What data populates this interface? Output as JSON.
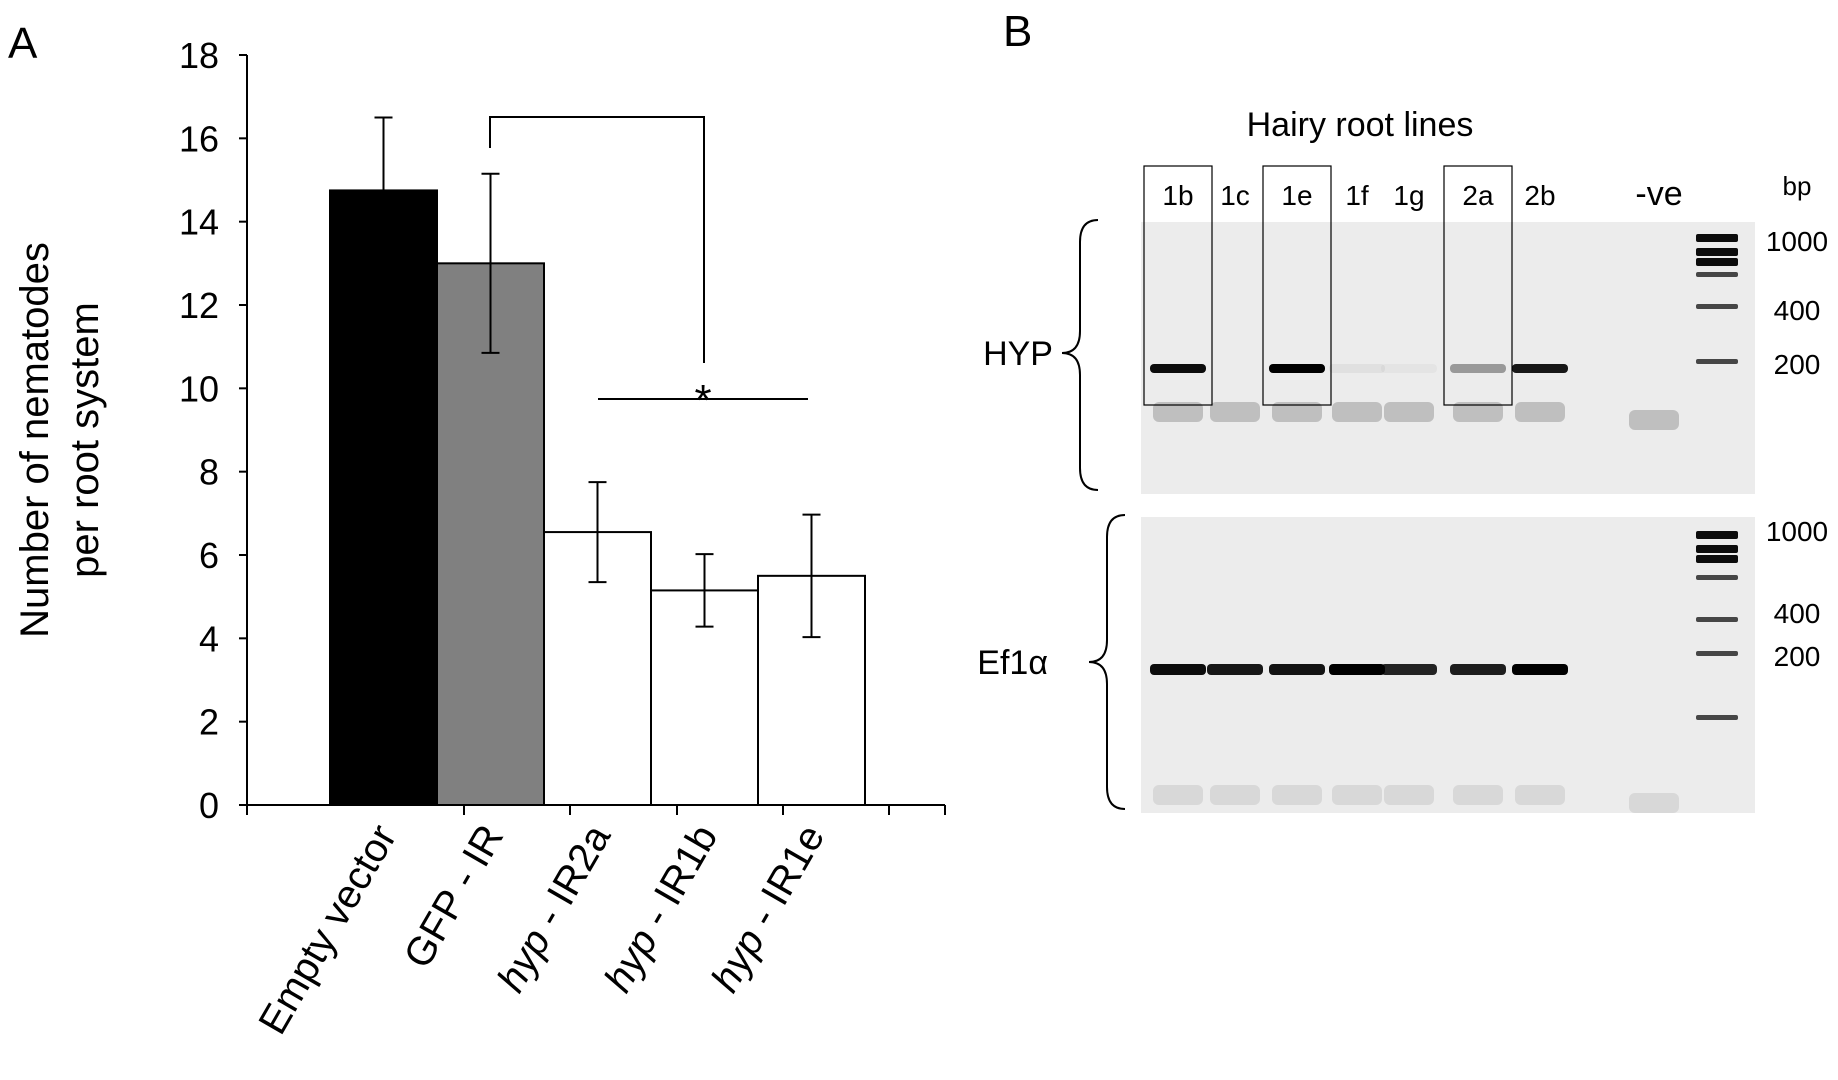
{
  "panel_a": {
    "letter": "A",
    "significance": "*"
  },
  "panel_b": {
    "letter": "B",
    "title": "Hairy root lines",
    "bp_label": "bp",
    "lanes": [
      "1b",
      "1c",
      "1e",
      "1f",
      "1g",
      "2a",
      "2b",
      "-ve"
    ],
    "boxed_lanes": [
      "1b",
      "1e",
      "2a"
    ],
    "gels": [
      {
        "label": "HYP",
        "ladder_labels": [
          "1000",
          "400",
          "200"
        ],
        "band_intensity": {
          "1b": 0.95,
          "1c": 0.0,
          "1e": 1.0,
          "1f": 0.05,
          "1g": 0.03,
          "2a": 0.35,
          "2b": 0.9,
          "-ve": 0.0
        },
        "primer_band": {
          "1b": 1,
          "1c": 1,
          "1e": 1,
          "1f": 1,
          "1g": 1,
          "2a": 1,
          "2b": 1,
          "-ve": 1
        }
      },
      {
        "label": "Ef1α",
        "ladder_labels": [
          "1000",
          "400",
          "200"
        ],
        "band_intensity": {
          "1b": 0.95,
          "1c": 0.9,
          "1e": 0.92,
          "1f": 1.0,
          "1g": 0.85,
          "2a": 0.88,
          "2b": 1.0,
          "-ve": 0.0
        },
        "primer_band": {
          "1b": 1,
          "1c": 1,
          "1e": 1,
          "1f": 1,
          "1g": 1,
          "2a": 1,
          "2b": 1,
          "-ve": 1
        }
      }
    ]
  },
  "chart_data": {
    "type": "bar",
    "ylabel_line1": "Number of nematodes",
    "ylabel_line2": "per root system",
    "ylim": [
      0,
      18
    ],
    "yticks": [
      0,
      2,
      4,
      6,
      8,
      10,
      12,
      14,
      16,
      18
    ],
    "categories": [
      {
        "prefix": "",
        "italic": "",
        "rest": "Empty vector"
      },
      {
        "prefix": "",
        "italic": "",
        "rest": "GFP - IR"
      },
      {
        "prefix": "",
        "italic": "hyp",
        "rest": " - IR2a"
      },
      {
        "prefix": "",
        "italic": "hyp",
        "rest": " - IR1b"
      },
      {
        "prefix": "",
        "italic": "hyp",
        "rest": " - IR1e"
      }
    ],
    "values": [
      14.75,
      13.0,
      6.55,
      5.15,
      5.5
    ],
    "errors": [
      1.75,
      2.15,
      1.2,
      0.87,
      1.47
    ],
    "colors": [
      "#000000",
      "#808080",
      "#ffffff",
      "#ffffff",
      "#ffffff"
    ],
    "grid": false
  }
}
